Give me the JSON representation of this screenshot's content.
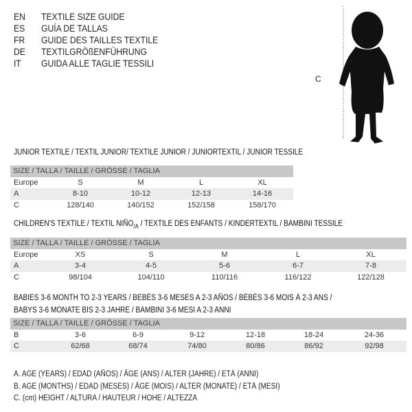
{
  "languages": [
    {
      "code": "EN",
      "title": "TEXTILE SIZE GUIDE"
    },
    {
      "code": "ES",
      "title": "GUÍA DE TALLAS"
    },
    {
      "code": "FR",
      "title": "GUIDE DES TAILLES TEXTILE"
    },
    {
      "code": "DE",
      "title": "TEXTILGRÖßENFÜHRUNG"
    },
    {
      "code": "IT",
      "title": "GUIDA ALLE TAGLIE TESSILI"
    }
  ],
  "figure": {
    "measure_label": "C",
    "icon": "child-silhouette-icon"
  },
  "size_header": "SIZE / TALLA / TAILLE / GRÖSSE / TAGLIA",
  "junior": {
    "title": "JUNIOR TEXTILE / TEXTIL JUNIOR/ TEXTILE JUNIOR / JUNIORTEXTIL / JUNIOR TESSILE",
    "rows": [
      {
        "label": "Europe",
        "values": [
          "S",
          "M",
          "L",
          "XL"
        ]
      },
      {
        "label": "A",
        "values": [
          "8-10",
          "10-12",
          "12-13",
          "14-16"
        ]
      },
      {
        "label": "C",
        "values": [
          "128/140",
          "140/152",
          "152/158",
          "158/170"
        ]
      }
    ]
  },
  "children": {
    "title_a": "CHILDREN'S TEXTILE / TEXTIL NIÑO",
    "title_sub": "/A",
    "title_b": " / TEXTILE DES ENFANTS / KINDERTEXTIL / BAMBINI TESSILE",
    "rows": [
      {
        "label": "Europe",
        "values": [
          "XS",
          "S",
          "M",
          "L",
          "XL"
        ]
      },
      {
        "label": "A",
        "values": [
          "3-4",
          "4-5",
          "5-6",
          "6-7",
          "7-8"
        ]
      },
      {
        "label": "C",
        "values": [
          "98/104",
          "104/110",
          "110/116",
          "116/122",
          "122/128"
        ]
      }
    ]
  },
  "babies": {
    "title_line1": "BABIES 3-6 MONTH TO 2-3 YEARS / BEBÉS 3-6 MESES A 2-3 AÑOS / BÉBÉS 3-6 MOIS À 2-3 ANS /",
    "title_line2": "BABYS 3-6 MONATE BIS 2-3 JAHRE / BAMBINI 3-6 MESI A 2-3 ANNI",
    "rows": [
      {
        "label": "B",
        "values": [
          "3-6",
          "6-9",
          "9-12",
          "12-18",
          "18-24",
          "24-36"
        ]
      },
      {
        "label": "C",
        "values": [
          "62/68",
          "68/74",
          "74/80",
          "80/86",
          "86/92",
          "92/98"
        ]
      }
    ]
  },
  "notes": [
    "A. AGE (YEARS) / EDAD (AÑOS) / ÂGE (ANS) / ALTER (JAHRE) / ETÀ (ANNI)",
    "B. AGE (MONTHS) / EDAD (MESES) / ÂGE (MOIS) / ALTER (MONATE) / ETÀ (MESI)",
    "C. (cm) HEIGHT / ALTURA / HAUTEUR / HÖHE / ALTEZZA"
  ]
}
